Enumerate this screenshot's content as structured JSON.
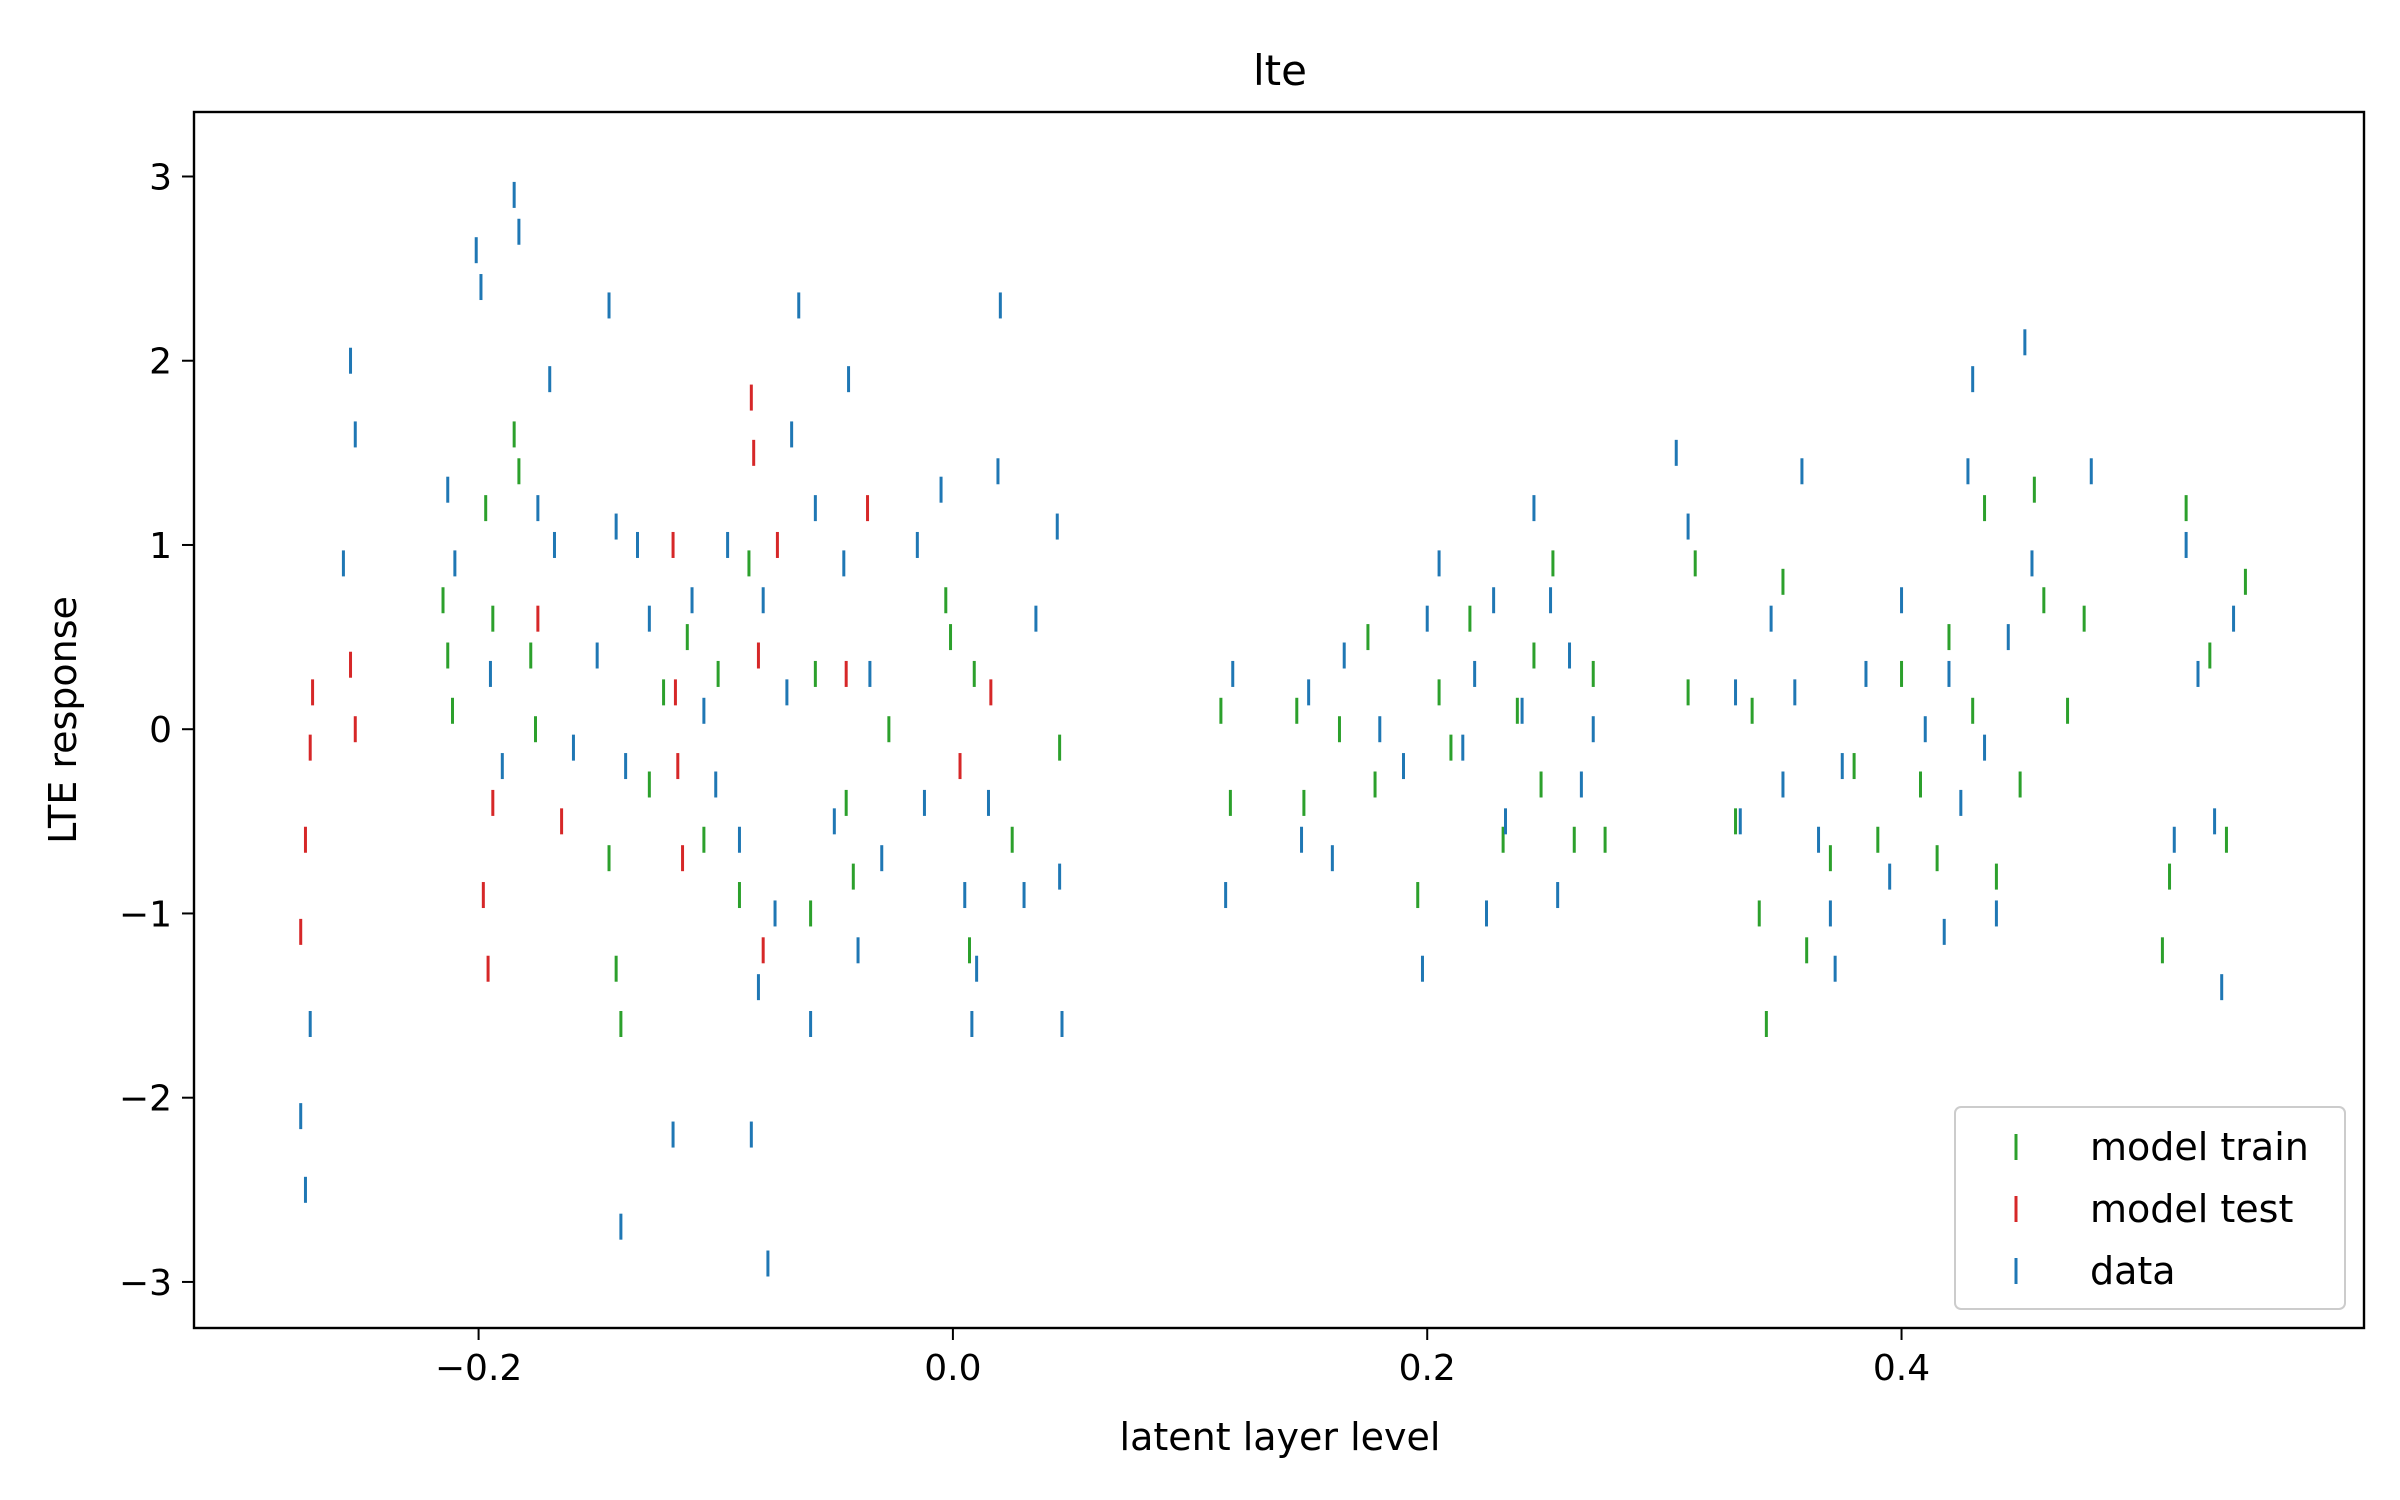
{
  "chart_data": {
    "type": "scatter",
    "title": "lte",
    "xlabel": "latent layer level",
    "ylabel": "LTE response",
    "xlim": [
      -0.32,
      0.595
    ],
    "ylim": [
      -3.25,
      3.35
    ],
    "x_ticks": [
      -0.2,
      0.0,
      0.2,
      0.4
    ],
    "x_tick_labels": [
      "−0.2",
      "0.0",
      "0.2",
      "0.4"
    ],
    "y_ticks": [
      -3,
      -2,
      -1,
      0,
      1,
      2,
      3
    ],
    "y_tick_labels": [
      "−3",
      "−2",
      "−1",
      "0",
      "1",
      "2",
      "3"
    ],
    "grid": false,
    "legend_position": "lower right",
    "marker": "vertical tick",
    "series": [
      {
        "name": "model train",
        "color": "#2ca02c",
        "points": [
          [
            -0.215,
            0.7
          ],
          [
            -0.213,
            0.4
          ],
          [
            -0.211,
            0.1
          ],
          [
            -0.197,
            1.2
          ],
          [
            -0.194,
            0.6
          ],
          [
            -0.185,
            1.6
          ],
          [
            -0.183,
            1.4
          ],
          [
            -0.178,
            0.4
          ],
          [
            -0.176,
            0.0
          ],
          [
            -0.145,
            -0.7
          ],
          [
            -0.142,
            -1.3
          ],
          [
            -0.14,
            -1.6
          ],
          [
            -0.128,
            -0.3
          ],
          [
            -0.122,
            0.2
          ],
          [
            -0.112,
            0.5
          ],
          [
            -0.105,
            -0.6
          ],
          [
            -0.099,
            0.3
          ],
          [
            -0.09,
            -0.9
          ],
          [
            -0.086,
            0.9
          ],
          [
            -0.06,
            -1.0
          ],
          [
            -0.058,
            0.3
          ],
          [
            -0.045,
            -0.4
          ],
          [
            -0.042,
            -0.8
          ],
          [
            -0.027,
            0.0
          ],
          [
            -0.003,
            0.7
          ],
          [
            -0.001,
            0.5
          ],
          [
            0.007,
            -1.2
          ],
          [
            0.009,
            0.3
          ],
          [
            0.025,
            -0.6
          ],
          [
            0.045,
            -0.1
          ],
          [
            0.113,
            0.1
          ],
          [
            0.117,
            -0.4
          ],
          [
            0.145,
            0.1
          ],
          [
            0.148,
            -0.4
          ],
          [
            0.163,
            0.0
          ],
          [
            0.175,
            0.5
          ],
          [
            0.178,
            -0.3
          ],
          [
            0.196,
            -0.9
          ],
          [
            0.205,
            0.2
          ],
          [
            0.21,
            -0.1
          ],
          [
            0.218,
            0.6
          ],
          [
            0.232,
            -0.6
          ],
          [
            0.238,
            0.1
          ],
          [
            0.245,
            0.4
          ],
          [
            0.248,
            -0.3
          ],
          [
            0.253,
            0.9
          ],
          [
            0.262,
            -0.6
          ],
          [
            0.27,
            0.3
          ],
          [
            0.275,
            -0.6
          ],
          [
            0.31,
            0.2
          ],
          [
            0.313,
            0.9
          ],
          [
            0.33,
            -0.5
          ],
          [
            0.337,
            0.1
          ],
          [
            0.34,
            -1.0
          ],
          [
            0.343,
            -1.6
          ],
          [
            0.35,
            0.8
          ],
          [
            0.36,
            -1.2
          ],
          [
            0.37,
            -0.7
          ],
          [
            0.38,
            -0.2
          ],
          [
            0.39,
            -0.6
          ],
          [
            0.4,
            0.3
          ],
          [
            0.408,
            -0.3
          ],
          [
            0.415,
            -0.7
          ],
          [
            0.42,
            0.5
          ],
          [
            0.43,
            0.1
          ],
          [
            0.435,
            1.2
          ],
          [
            0.44,
            -0.8
          ],
          [
            0.45,
            -0.3
          ],
          [
            0.456,
            1.3
          ],
          [
            0.46,
            0.7
          ],
          [
            0.47,
            0.1
          ],
          [
            0.477,
            0.6
          ],
          [
            0.51,
            -1.2
          ],
          [
            0.513,
            -0.8
          ],
          [
            0.52,
            1.2
          ],
          [
            0.53,
            0.4
          ],
          [
            0.537,
            -0.6
          ],
          [
            0.545,
            0.8
          ]
        ]
      },
      {
        "name": "model test",
        "color": "#d62728",
        "points": [
          [
            -0.275,
            -1.1
          ],
          [
            -0.273,
            -0.6
          ],
          [
            -0.271,
            -0.1
          ],
          [
            -0.27,
            0.2
          ],
          [
            -0.254,
            0.35
          ],
          [
            -0.252,
            0.0
          ],
          [
            -0.198,
            -0.9
          ],
          [
            -0.196,
            -1.3
          ],
          [
            -0.194,
            -0.4
          ],
          [
            -0.175,
            0.6
          ],
          [
            -0.165,
            -0.5
          ],
          [
            -0.118,
            1.0
          ],
          [
            -0.117,
            0.2
          ],
          [
            -0.116,
            -0.2
          ],
          [
            -0.114,
            -0.7
          ],
          [
            -0.085,
            1.8
          ],
          [
            -0.084,
            1.5
          ],
          [
            -0.082,
            0.4
          ],
          [
            -0.08,
            -1.2
          ],
          [
            -0.074,
            1.0
          ],
          [
            -0.045,
            0.3
          ],
          [
            -0.036,
            1.2
          ],
          [
            0.003,
            -0.2
          ],
          [
            0.016,
            0.2
          ]
        ]
      },
      {
        "name": "data",
        "color": "#1f77b4",
        "points": [
          [
            -0.275,
            -2.1
          ],
          [
            -0.273,
            -2.5
          ],
          [
            -0.271,
            -1.6
          ],
          [
            -0.254,
            2.0
          ],
          [
            -0.252,
            1.6
          ],
          [
            -0.257,
            0.9
          ],
          [
            -0.213,
            1.3
          ],
          [
            -0.21,
            0.9
          ],
          [
            -0.201,
            2.6
          ],
          [
            -0.199,
            2.4
          ],
          [
            -0.185,
            2.9
          ],
          [
            -0.183,
            2.7
          ],
          [
            -0.195,
            0.3
          ],
          [
            -0.19,
            -0.2
          ],
          [
            -0.175,
            1.2
          ],
          [
            -0.17,
            1.9
          ],
          [
            -0.168,
            1.0
          ],
          [
            -0.16,
            -0.1
          ],
          [
            -0.15,
            0.4
          ],
          [
            -0.145,
            2.3
          ],
          [
            -0.142,
            1.1
          ],
          [
            -0.14,
            -2.7
          ],
          [
            -0.138,
            -0.2
          ],
          [
            -0.133,
            1.0
          ],
          [
            -0.128,
            0.6
          ],
          [
            -0.118,
            -2.2
          ],
          [
            -0.11,
            0.7
          ],
          [
            -0.105,
            0.1
          ],
          [
            -0.1,
            -0.3
          ],
          [
            -0.095,
            1.0
          ],
          [
            -0.09,
            -0.6
          ],
          [
            -0.085,
            -2.2
          ],
          [
            -0.082,
            -1.4
          ],
          [
            -0.08,
            0.7
          ],
          [
            -0.078,
            -2.9
          ],
          [
            -0.075,
            -1.0
          ],
          [
            -0.07,
            0.2
          ],
          [
            -0.068,
            1.6
          ],
          [
            -0.065,
            2.3
          ],
          [
            -0.06,
            -1.6
          ],
          [
            -0.058,
            1.2
          ],
          [
            -0.05,
            -0.5
          ],
          [
            -0.046,
            0.9
          ],
          [
            -0.044,
            1.9
          ],
          [
            -0.04,
            -1.2
          ],
          [
            -0.035,
            0.3
          ],
          [
            -0.03,
            -0.7
          ],
          [
            -0.015,
            1.0
          ],
          [
            -0.012,
            -0.4
          ],
          [
            -0.005,
            1.3
          ],
          [
            0.005,
            -0.9
          ],
          [
            0.008,
            -1.6
          ],
          [
            0.01,
            -1.3
          ],
          [
            0.015,
            -0.4
          ],
          [
            0.02,
            2.3
          ],
          [
            0.019,
            1.4
          ],
          [
            0.03,
            -0.9
          ],
          [
            0.035,
            0.6
          ],
          [
            0.044,
            1.1
          ],
          [
            0.045,
            -0.8
          ],
          [
            0.046,
            -1.6
          ],
          [
            0.115,
            -0.9
          ],
          [
            0.118,
            0.3
          ],
          [
            0.147,
            -0.6
          ],
          [
            0.15,
            0.2
          ],
          [
            0.16,
            -0.7
          ],
          [
            0.165,
            0.4
          ],
          [
            0.18,
            0.0
          ],
          [
            0.19,
            -0.2
          ],
          [
            0.198,
            -1.3
          ],
          [
            0.2,
            0.6
          ],
          [
            0.205,
            0.9
          ],
          [
            0.215,
            -0.1
          ],
          [
            0.22,
            0.3
          ],
          [
            0.225,
            -1.0
          ],
          [
            0.228,
            0.7
          ],
          [
            0.233,
            -0.5
          ],
          [
            0.24,
            0.1
          ],
          [
            0.245,
            1.2
          ],
          [
            0.252,
            0.7
          ],
          [
            0.255,
            -0.9
          ],
          [
            0.26,
            0.4
          ],
          [
            0.265,
            -0.3
          ],
          [
            0.27,
            0.0
          ],
          [
            0.305,
            1.5
          ],
          [
            0.31,
            1.1
          ],
          [
            0.33,
            0.2
          ],
          [
            0.332,
            -0.5
          ],
          [
            0.345,
            0.6
          ],
          [
            0.35,
            -0.3
          ],
          [
            0.355,
            0.2
          ],
          [
            0.358,
            1.4
          ],
          [
            0.365,
            -0.6
          ],
          [
            0.37,
            -1.0
          ],
          [
            0.372,
            -1.3
          ],
          [
            0.375,
            -0.2
          ],
          [
            0.385,
            0.3
          ],
          [
            0.395,
            -0.8
          ],
          [
            0.4,
            0.7
          ],
          [
            0.41,
            0.0
          ],
          [
            0.418,
            -1.1
          ],
          [
            0.42,
            0.3
          ],
          [
            0.425,
            -0.4
          ],
          [
            0.428,
            1.4
          ],
          [
            0.43,
            1.9
          ],
          [
            0.435,
            -0.1
          ],
          [
            0.44,
            -1.0
          ],
          [
            0.445,
            0.5
          ],
          [
            0.452,
            2.1
          ],
          [
            0.455,
            0.9
          ],
          [
            0.48,
            1.4
          ],
          [
            0.515,
            -0.6
          ],
          [
            0.52,
            1.0
          ],
          [
            0.525,
            0.3
          ],
          [
            0.532,
            -0.5
          ],
          [
            0.535,
            -1.4
          ],
          [
            0.54,
            0.6
          ]
        ]
      }
    ]
  }
}
